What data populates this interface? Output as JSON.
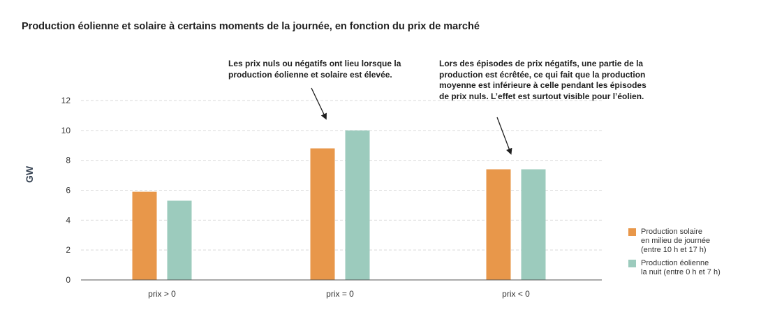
{
  "chart_data": {
    "type": "bar",
    "title": "Production éolienne et solaire à certains moments de la journée, en fonction du prix de marché",
    "ylabel": "GW",
    "xlabel": "",
    "categories": [
      "prix > 0",
      "prix = 0",
      "prix < 0"
    ],
    "yticks": [
      "0",
      "2",
      "4",
      "6",
      "8",
      "10",
      "12"
    ],
    "ylim": [
      0,
      12
    ],
    "grid": true,
    "legend_position": "bottom-right",
    "series": [
      {
        "name": "Production solaire\nen milieu de journée\n(entre 10 h et 17 h)",
        "color": "#e8974a",
        "values": [
          5.9,
          8.8,
          7.4
        ]
      },
      {
        "name": "Production éolienne\nla nuit (entre 0 h et 7 h)",
        "color": "#9ccbbd",
        "values": [
          5.3,
          10.0,
          7.4
        ]
      }
    ],
    "annotations": [
      "Les prix nuls ou négatifs ont lieu lorsque la production éolienne et solaire est élevée.",
      "Lors des épisodes de prix négatifs, une partie de la production est écrêtée, ce qui fait que la production moyenne est inférieure à celle pendant les épisodes de prix nuls. L’effet est surtout visible pour l’éolien."
    ]
  }
}
